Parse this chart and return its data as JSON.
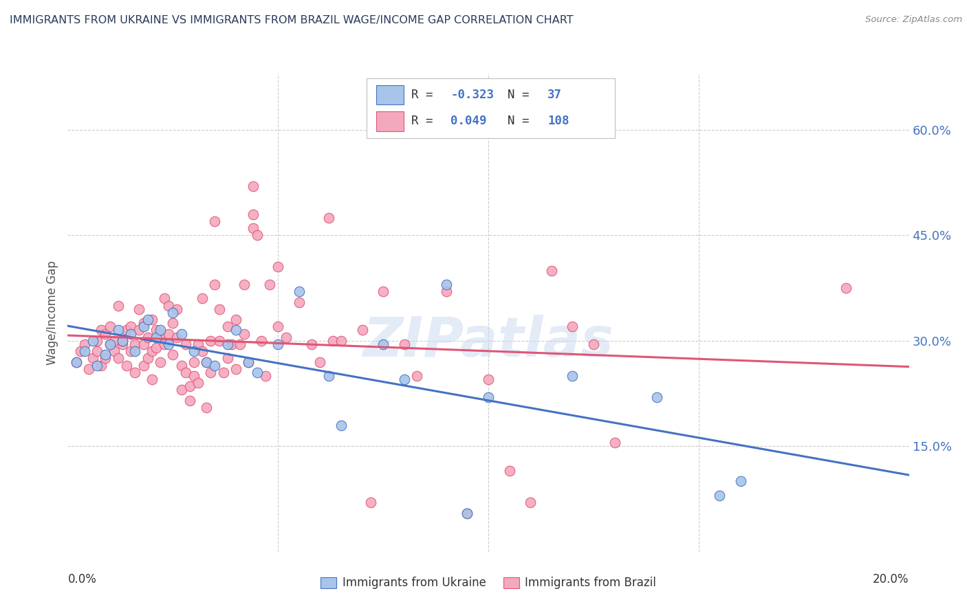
{
  "title": "IMMIGRANTS FROM UKRAINE VS IMMIGRANTS FROM BRAZIL WAGE/INCOME GAP CORRELATION CHART",
  "source": "Source: ZipAtlas.com",
  "ylabel": "Wage/Income Gap",
  "ytick_values": [
    0.15,
    0.3,
    0.45,
    0.6
  ],
  "xlim": [
    0.0,
    0.2
  ],
  "ylim": [
    0.0,
    0.68
  ],
  "ukraine_color": "#a8c4e8",
  "brazil_color": "#f4a8be",
  "ukraine_edge_color": "#4472c4",
  "brazil_edge_color": "#e05575",
  "ukraine_line_color": "#4472c4",
  "brazil_line_color": "#e05575",
  "right_tick_color": "#4472c4",
  "legend_dark_color": "#333333",
  "legend_blue_color": "#4472c4",
  "watermark": "ZIPatlas",
  "watermark_color": "#c8d8f0",
  "grid_color": "#cccccc",
  "ukraine_R": "-0.323",
  "ukraine_N": "37",
  "brazil_R": "0.049",
  "brazil_N": "108",
  "ukraine_points": [
    [
      0.002,
      0.27
    ],
    [
      0.004,
      0.285
    ],
    [
      0.006,
      0.3
    ],
    [
      0.007,
      0.265
    ],
    [
      0.009,
      0.28
    ],
    [
      0.01,
      0.295
    ],
    [
      0.012,
      0.315
    ],
    [
      0.013,
      0.3
    ],
    [
      0.015,
      0.31
    ],
    [
      0.016,
      0.285
    ],
    [
      0.018,
      0.32
    ],
    [
      0.019,
      0.33
    ],
    [
      0.021,
      0.305
    ],
    [
      0.022,
      0.315
    ],
    [
      0.024,
      0.295
    ],
    [
      0.025,
      0.34
    ],
    [
      0.027,
      0.31
    ],
    [
      0.03,
      0.285
    ],
    [
      0.033,
      0.27
    ],
    [
      0.035,
      0.265
    ],
    [
      0.038,
      0.295
    ],
    [
      0.04,
      0.315
    ],
    [
      0.043,
      0.27
    ],
    [
      0.045,
      0.255
    ],
    [
      0.05,
      0.295
    ],
    [
      0.055,
      0.37
    ],
    [
      0.062,
      0.25
    ],
    [
      0.065,
      0.18
    ],
    [
      0.075,
      0.295
    ],
    [
      0.08,
      0.245
    ],
    [
      0.09,
      0.38
    ],
    [
      0.095,
      0.055
    ],
    [
      0.1,
      0.22
    ],
    [
      0.12,
      0.25
    ],
    [
      0.14,
      0.22
    ],
    [
      0.155,
      0.08
    ],
    [
      0.16,
      0.1
    ]
  ],
  "brazil_points": [
    [
      0.002,
      0.27
    ],
    [
      0.003,
      0.285
    ],
    [
      0.004,
      0.295
    ],
    [
      0.005,
      0.26
    ],
    [
      0.006,
      0.275
    ],
    [
      0.007,
      0.3
    ],
    [
      0.007,
      0.285
    ],
    [
      0.008,
      0.265
    ],
    [
      0.008,
      0.315
    ],
    [
      0.009,
      0.31
    ],
    [
      0.009,
      0.275
    ],
    [
      0.01,
      0.295
    ],
    [
      0.01,
      0.32
    ],
    [
      0.011,
      0.3
    ],
    [
      0.011,
      0.285
    ],
    [
      0.012,
      0.275
    ],
    [
      0.012,
      0.35
    ],
    [
      0.013,
      0.295
    ],
    [
      0.013,
      0.3
    ],
    [
      0.014,
      0.315
    ],
    [
      0.014,
      0.265
    ],
    [
      0.015,
      0.32
    ],
    [
      0.015,
      0.285
    ],
    [
      0.016,
      0.295
    ],
    [
      0.016,
      0.255
    ],
    [
      0.017,
      0.315
    ],
    [
      0.017,
      0.345
    ],
    [
      0.018,
      0.325
    ],
    [
      0.018,
      0.295
    ],
    [
      0.018,
      0.265
    ],
    [
      0.019,
      0.275
    ],
    [
      0.019,
      0.305
    ],
    [
      0.02,
      0.33
    ],
    [
      0.02,
      0.285
    ],
    [
      0.02,
      0.245
    ],
    [
      0.021,
      0.315
    ],
    [
      0.021,
      0.29
    ],
    [
      0.022,
      0.31
    ],
    [
      0.022,
      0.27
    ],
    [
      0.023,
      0.36
    ],
    [
      0.023,
      0.295
    ],
    [
      0.024,
      0.35
    ],
    [
      0.024,
      0.31
    ],
    [
      0.025,
      0.325
    ],
    [
      0.025,
      0.28
    ],
    [
      0.026,
      0.345
    ],
    [
      0.026,
      0.305
    ],
    [
      0.027,
      0.23
    ],
    [
      0.027,
      0.265
    ],
    [
      0.028,
      0.295
    ],
    [
      0.028,
      0.255
    ],
    [
      0.029,
      0.235
    ],
    [
      0.029,
      0.215
    ],
    [
      0.03,
      0.27
    ],
    [
      0.03,
      0.25
    ],
    [
      0.031,
      0.295
    ],
    [
      0.031,
      0.24
    ],
    [
      0.032,
      0.36
    ],
    [
      0.032,
      0.285
    ],
    [
      0.033,
      0.27
    ],
    [
      0.033,
      0.205
    ],
    [
      0.034,
      0.3
    ],
    [
      0.034,
      0.255
    ],
    [
      0.035,
      0.47
    ],
    [
      0.035,
      0.38
    ],
    [
      0.036,
      0.345
    ],
    [
      0.036,
      0.3
    ],
    [
      0.037,
      0.255
    ],
    [
      0.038,
      0.32
    ],
    [
      0.038,
      0.275
    ],
    [
      0.039,
      0.295
    ],
    [
      0.04,
      0.33
    ],
    [
      0.04,
      0.26
    ],
    [
      0.041,
      0.295
    ],
    [
      0.042,
      0.38
    ],
    [
      0.042,
      0.31
    ],
    [
      0.043,
      0.27
    ],
    [
      0.044,
      0.52
    ],
    [
      0.044,
      0.48
    ],
    [
      0.044,
      0.46
    ],
    [
      0.045,
      0.45
    ],
    [
      0.046,
      0.3
    ],
    [
      0.047,
      0.25
    ],
    [
      0.048,
      0.38
    ],
    [
      0.05,
      0.405
    ],
    [
      0.05,
      0.32
    ],
    [
      0.052,
      0.305
    ],
    [
      0.055,
      0.355
    ],
    [
      0.058,
      0.295
    ],
    [
      0.06,
      0.27
    ],
    [
      0.062,
      0.475
    ],
    [
      0.063,
      0.3
    ],
    [
      0.065,
      0.3
    ],
    [
      0.07,
      0.315
    ],
    [
      0.072,
      0.07
    ],
    [
      0.075,
      0.37
    ],
    [
      0.08,
      0.295
    ],
    [
      0.083,
      0.25
    ],
    [
      0.09,
      0.37
    ],
    [
      0.095,
      0.055
    ],
    [
      0.1,
      0.245
    ],
    [
      0.105,
      0.115
    ],
    [
      0.11,
      0.07
    ],
    [
      0.115,
      0.4
    ],
    [
      0.12,
      0.32
    ],
    [
      0.125,
      0.295
    ],
    [
      0.13,
      0.155
    ],
    [
      0.185,
      0.375
    ]
  ]
}
